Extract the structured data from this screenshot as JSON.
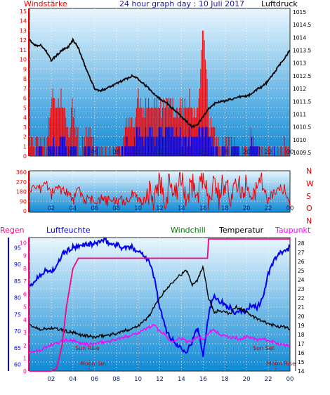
{
  "header": {
    "title": "24 hour graph day : 10 Juli 2017",
    "left_label": "Windstärke",
    "right_label": "Luftdruck"
  },
  "colors": {
    "panel_top": "#e8f6fd",
    "panel_bottom": "#0e8ad6",
    "wind_axis": "#ee0000",
    "pressure_axis": "#000000",
    "direction": "#ee0000",
    "gust": "#ff0000",
    "wind_avg": "#0000ee",
    "humidity": "#0000ee",
    "temperature": "#000000",
    "dewpoint": "#ff00ff",
    "windchill": "#008000",
    "rain": "#ff0080",
    "sun_moon": "#cc0000"
  },
  "chart_data": [
    {
      "type": "line",
      "panel": "wind-pressure",
      "x_ticks": [
        "02",
        "04",
        "06",
        "08",
        "10",
        "12",
        "14",
        "16",
        "18",
        "20",
        "22",
        "00"
      ],
      "left_axis": {
        "title": "Windstärke",
        "ticks": [
          0,
          1,
          2,
          3,
          4,
          5,
          6,
          7,
          8,
          9,
          10,
          11,
          12,
          13,
          14,
          15
        ],
        "ylim": [
          0,
          15
        ]
      },
      "right_axis": {
        "title": "Luftdruck",
        "ticks": [
          "1009.5",
          "1010",
          "1010.5",
          "1011",
          "1011.5",
          "1012",
          "1012.5",
          "1013",
          "1013.5",
          "1014",
          "1014.5",
          "1015"
        ],
        "ylim": [
          1009.5,
          1015
        ]
      },
      "series": [
        {
          "name": "Luftdruck",
          "axis": "right",
          "x": [
            0,
            0.5,
            1,
            1.5,
            2,
            2.5,
            3,
            3.5,
            4,
            4.5,
            5,
            5.5,
            6,
            6.5,
            7,
            7.5,
            8,
            8.5,
            9,
            9.5,
            10,
            10.5,
            11,
            11.5,
            12,
            12.5,
            13,
            13.5,
            14,
            14.5,
            15,
            15.5,
            16,
            16.5,
            17,
            17.5,
            18,
            18.5,
            19,
            19.5,
            20,
            20.5,
            21,
            21.5,
            22,
            22.5,
            23,
            23.5,
            24
          ],
          "y": [
            1013.9,
            1013.7,
            1013.7,
            1013.5,
            1013.1,
            1013.3,
            1013.5,
            1013.6,
            1013.9,
            1013.6,
            1013.0,
            1012.5,
            1012.0,
            1011.9,
            1012.0,
            1012.1,
            1012.2,
            1012.3,
            1012.4,
            1012.5,
            1012.4,
            1012.2,
            1012.0,
            1011.8,
            1011.6,
            1011.5,
            1011.3,
            1011.1,
            1010.9,
            1010.7,
            1010.5,
            1010.6,
            1010.9,
            1011.2,
            1011.4,
            1011.5,
            1011.5,
            1011.6,
            1011.6,
            1011.7,
            1011.7,
            1011.8,
            1012.0,
            1012.1,
            1012.3,
            1012.6,
            1012.9,
            1013.2,
            1013.5
          ]
        },
        {
          "name": "Windböen",
          "axis": "left",
          "x": [
            0,
            0.5,
            1,
            1.5,
            2,
            2.5,
            3,
            3.5,
            4,
            4.5,
            5,
            5.5,
            6,
            6.5,
            7,
            7.5,
            8,
            8.5,
            9,
            9.5,
            10,
            10.5,
            11,
            11.5,
            12,
            12.5,
            13,
            13.5,
            14,
            14.5,
            15,
            15.5,
            16,
            16.5,
            17,
            17.5,
            18,
            18.5,
            19,
            19.5,
            20,
            20.5,
            21,
            21.5,
            22,
            22.5,
            23,
            23.5,
            24
          ],
          "y": [
            1,
            1,
            2,
            1,
            6,
            5,
            6,
            2,
            5,
            1,
            1,
            2,
            1,
            0,
            0,
            0,
            0,
            1,
            4,
            3,
            6,
            4,
            6,
            5,
            6,
            5,
            6,
            4,
            5,
            6,
            5,
            4,
            15,
            4,
            2,
            1,
            2,
            1,
            2,
            0,
            1,
            2,
            0,
            0,
            0,
            0,
            0,
            1,
            0
          ]
        },
        {
          "name": "Windmittel",
          "axis": "left",
          "x": [
            0,
            0.5,
            1,
            1.5,
            2,
            2.5,
            3,
            3.5,
            4,
            4.5,
            5,
            5.5,
            6,
            6.5,
            7,
            7.5,
            8,
            8.5,
            9,
            9.5,
            10,
            10.5,
            11,
            11.5,
            12,
            12.5,
            13,
            13.5,
            14,
            14.5,
            15,
            15.5,
            16,
            16.5,
            17,
            17.5,
            18,
            18.5,
            19,
            19.5,
            20,
            20.5,
            21,
            21.5,
            22,
            22.5,
            23,
            23.5,
            24
          ],
          "y": [
            0,
            0,
            1,
            0,
            1,
            1,
            2,
            1,
            1,
            0,
            0,
            1,
            0,
            0,
            0,
            0,
            0,
            0,
            2,
            1,
            3,
            2,
            3,
            2,
            3,
            2,
            3,
            2,
            2,
            2,
            2,
            2,
            3,
            2,
            1,
            0,
            1,
            0,
            1,
            0,
            0,
            1,
            0,
            0,
            0,
            0,
            0,
            0,
            0
          ]
        }
      ]
    },
    {
      "type": "line",
      "panel": "wind-direction",
      "x_ticks": [
        "02",
        "04",
        "06",
        "08",
        "10",
        "12",
        "14",
        "16",
        "18",
        "20",
        "22",
        "00"
      ],
      "left_axis": {
        "ticks": [
          0,
          90,
          180,
          270,
          360
        ],
        "ylim": [
          0,
          360
        ]
      },
      "right_labels": [
        "N",
        "W",
        "S",
        "O",
        "N"
      ],
      "series": [
        {
          "name": "Windrichtung",
          "x": [
            0,
            0.5,
            1,
            1.5,
            2,
            2.5,
            3,
            3.5,
            4,
            4.5,
            5,
            5.5,
            6,
            6.5,
            7,
            7.5,
            8,
            8.5,
            9,
            9.5,
            10,
            10.5,
            11,
            11.5,
            12,
            12.5,
            13,
            13.5,
            14,
            14.5,
            15,
            15.5,
            16,
            16.5,
            17,
            17.5,
            18,
            18.5,
            19,
            19.5,
            20,
            20.5,
            21,
            21.5,
            22,
            22.5,
            23,
            23.5,
            24
          ],
          "y": [
            225,
            180,
            200,
            270,
            150,
            220,
            200,
            180,
            90,
            200,
            110,
            90,
            100,
            110,
            90,
            90,
            95,
            90,
            100,
            150,
            120,
            80,
            180,
            90,
            300,
            120,
            280,
            180,
            320,
            90,
            260,
            150,
            330,
            100,
            280,
            120,
            300,
            150,
            250,
            180,
            270,
            200,
            220,
            230,
            90,
            180,
            210,
            200,
            60
          ]
        }
      ]
    },
    {
      "type": "line",
      "panel": "temp-humidity",
      "legend": [
        "Regen",
        "Luftfeuchte",
        "Windchill",
        "Temperatur",
        "Taupunkt"
      ],
      "x_ticks": [
        "02",
        "04",
        "06",
        "08",
        "10",
        "12",
        "14",
        "16",
        "18",
        "20",
        "22",
        "00"
      ],
      "left_axis": {
        "title": "Luftfeuchte",
        "ticks": [
          60,
          65,
          70,
          75,
          80,
          85,
          90,
          95
        ],
        "ylim": [
          58,
          98
        ]
      },
      "rain_axis": {
        "title": "Regen",
        "ticks": [
          0,
          1,
          2,
          3,
          4,
          5,
          6,
          7,
          8,
          9,
          10
        ],
        "ylim": [
          0,
          10.3
        ]
      },
      "right_axis": {
        "title": "Temperatur",
        "ticks": [
          14,
          15,
          16,
          17,
          18,
          19,
          20,
          21,
          22,
          23,
          24,
          25,
          26,
          27,
          28
        ],
        "ylim": [
          14,
          28.6
        ]
      },
      "annotations": [
        "Sun Rise",
        "Moon Set",
        "Sun Set",
        "Moon Rise"
      ],
      "series": [
        {
          "name": "Luftfeuchte",
          "axis": "left",
          "x": [
            0,
            0.5,
            1,
            1.5,
            2,
            2.5,
            3,
            3.5,
            4,
            4.5,
            5,
            5.5,
            6,
            6.5,
            7,
            7.5,
            8,
            8.5,
            9,
            9.5,
            10,
            10.5,
            11,
            11.5,
            12,
            12.5,
            13,
            13.5,
            14,
            14.5,
            15,
            15.5,
            16,
            16.5,
            17,
            17.5,
            18,
            18.5,
            19,
            19.5,
            20,
            20.5,
            21,
            21.5,
            22,
            22.5,
            23,
            23.5,
            24
          ],
          "y": [
            83,
            85,
            87,
            88,
            88,
            89,
            93,
            94,
            95,
            95,
            96,
            96,
            96,
            97,
            97,
            96,
            96,
            95,
            95,
            95,
            94,
            93,
            91,
            86,
            77,
            71,
            68,
            66,
            65,
            64,
            67,
            71,
            63,
            75,
            81,
            79,
            78,
            77,
            75,
            76,
            76,
            78,
            77,
            80,
            87,
            91,
            93,
            94,
            95
          ]
        },
        {
          "name": "Temperatur",
          "axis": "right",
          "x": [
            0,
            0.5,
            1,
            1.5,
            2,
            2.5,
            3,
            3.5,
            4,
            4.5,
            5,
            5.5,
            6,
            6.5,
            7,
            7.5,
            8,
            8.5,
            9,
            9.5,
            10,
            10.5,
            11,
            11.5,
            12,
            12.5,
            13,
            13.5,
            14,
            14.5,
            15,
            15.5,
            16,
            16.5,
            17,
            17.5,
            18,
            18.5,
            19,
            19.5,
            20,
            20.5,
            21,
            21.5,
            22,
            22.5,
            23,
            23.5,
            24
          ],
          "y": [
            19.0,
            18.8,
            18.6,
            18.6,
            18.7,
            18.6,
            18.5,
            18.3,
            18.2,
            18.0,
            17.9,
            17.8,
            17.7,
            17.8,
            17.9,
            18.0,
            18.1,
            18.3,
            18.5,
            18.7,
            19.0,
            19.4,
            20.0,
            21.0,
            22.0,
            22.8,
            23.5,
            24.2,
            24.6,
            25.0,
            23.5,
            24.0,
            25.5,
            22.0,
            20.5,
            20.6,
            20.4,
            20.3,
            21.0,
            20.8,
            20.5,
            20.0,
            19.7,
            19.4,
            19.2,
            19.0,
            18.9,
            18.8,
            18.6
          ]
        },
        {
          "name": "Taupunkt",
          "axis": "right",
          "x": [
            0,
            0.5,
            1,
            1.5,
            2,
            2.5,
            3,
            3.5,
            4,
            4.5,
            5,
            5.5,
            6,
            6.5,
            7,
            7.5,
            8,
            8.5,
            9,
            9.5,
            10,
            10.5,
            11,
            11.5,
            12,
            12.5,
            13,
            13.5,
            14,
            14.5,
            15,
            15.5,
            16,
            16.5,
            17,
            17.5,
            18,
            18.5,
            19,
            19.5,
            20,
            20.5,
            21,
            21.5,
            22,
            22.5,
            23,
            23.5,
            24
          ],
          "y": [
            16.0,
            16.2,
            16.3,
            16.6,
            16.9,
            17.0,
            17.3,
            17.4,
            17.3,
            17.1,
            17.0,
            16.9,
            17.0,
            17.1,
            17.2,
            17.3,
            17.5,
            17.6,
            17.8,
            18.0,
            18.2,
            18.5,
            18.8,
            19.0,
            18.4,
            18.0,
            17.2,
            17.5,
            17.6,
            17.2,
            17.4,
            17.8,
            17.5,
            18.2,
            18.6,
            18.0,
            17.8,
            17.7,
            17.6,
            17.5,
            17.8,
            17.6,
            17.4,
            17.5,
            17.3,
            17.2,
            17.0,
            16.8,
            16.8
          ]
        },
        {
          "name": "Regen",
          "axis": "rain",
          "x": [
            0,
            1,
            1.6,
            2,
            2.5,
            3,
            3.4,
            4,
            4.5,
            5,
            5.5,
            6,
            7,
            8,
            9,
            10,
            11,
            12,
            13,
            14,
            15,
            16,
            16.4,
            16.5,
            17,
            18,
            19,
            20,
            21,
            22,
            23,
            24
          ],
          "y": [
            0,
            0,
            0,
            0,
            0.2,
            2.0,
            5.0,
            8.0,
            8.8,
            8.8,
            8.8,
            8.8,
            8.8,
            8.8,
            8.8,
            8.8,
            8.8,
            8.8,
            8.8,
            8.8,
            8.8,
            8.8,
            8.8,
            10.3,
            10.3,
            10.3,
            10.3,
            10.3,
            10.3,
            10.3,
            10.3,
            10.3
          ]
        }
      ]
    }
  ]
}
